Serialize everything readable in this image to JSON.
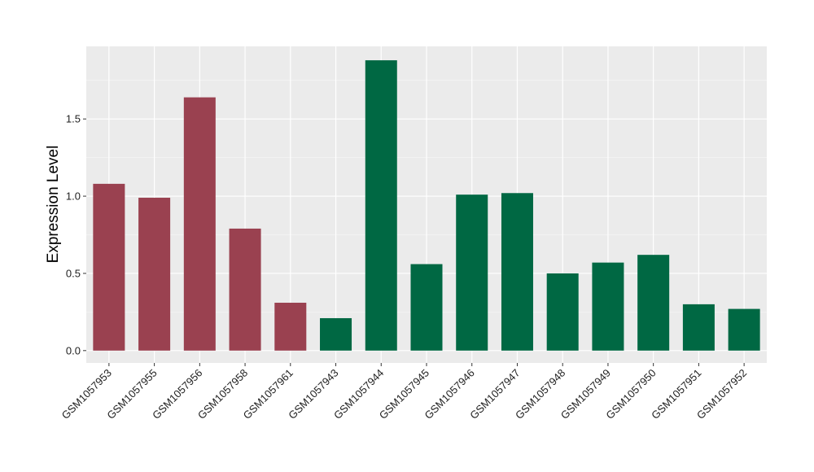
{
  "chart_data": {
    "type": "bar",
    "title": "",
    "xlabel": "",
    "ylabel": "Expression Level",
    "ylim": [
      -0.08,
      1.97
    ],
    "yticks": [
      0.0,
      0.5,
      1.0,
      1.5
    ],
    "ytick_labels": [
      "0.0",
      "0.5",
      "1.0",
      "1.5"
    ],
    "grid": true,
    "legend": "none",
    "categories": [
      "GSM1057953",
      "GSM1057955",
      "GSM1057956",
      "GSM1057958",
      "GSM1057961",
      "GSM1057943",
      "GSM1057944",
      "GSM1057945",
      "GSM1057946",
      "GSM1057947",
      "GSM1057948",
      "GSM1057949",
      "GSM1057950",
      "GSM1057951",
      "GSM1057952"
    ],
    "values": [
      1.08,
      0.99,
      1.64,
      0.79,
      0.31,
      0.21,
      1.88,
      0.56,
      1.01,
      1.02,
      0.5,
      0.57,
      0.62,
      0.3,
      0.27
    ],
    "groups": [
      "a",
      "a",
      "a",
      "a",
      "a",
      "b",
      "b",
      "b",
      "b",
      "b",
      "b",
      "b",
      "b",
      "b",
      "b"
    ],
    "group_colors": {
      "a": "#9A4150",
      "b": "#006843"
    }
  }
}
